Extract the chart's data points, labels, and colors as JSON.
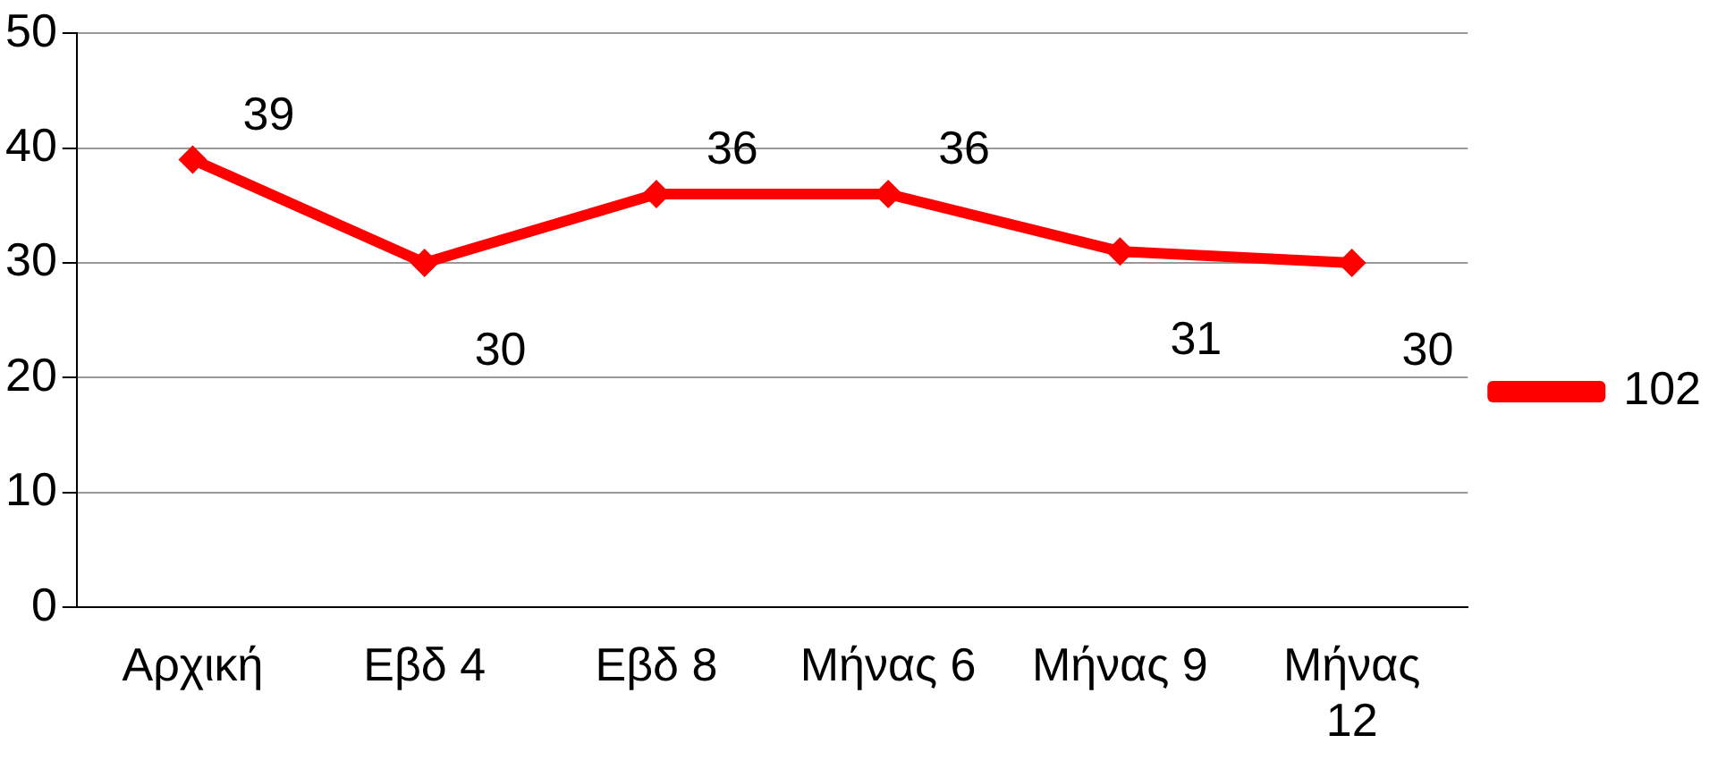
{
  "chart_data": {
    "type": "line",
    "categories": [
      "Αρχική",
      "Εβδ 4",
      "Εβδ 8",
      "Μήνας 6",
      "Μήνας 9",
      "Μήνας 12"
    ],
    "series": [
      {
        "name": "102",
        "color": "#ff0000",
        "values": [
          39,
          30,
          36,
          36,
          31,
          30
        ]
      }
    ],
    "ylim": [
      0,
      50
    ],
    "yticks": [
      0,
      10,
      20,
      30,
      40,
      50
    ],
    "grid": "y",
    "legend": "right",
    "marker": "diamond",
    "line_style": "solid",
    "data_labels": true
  }
}
